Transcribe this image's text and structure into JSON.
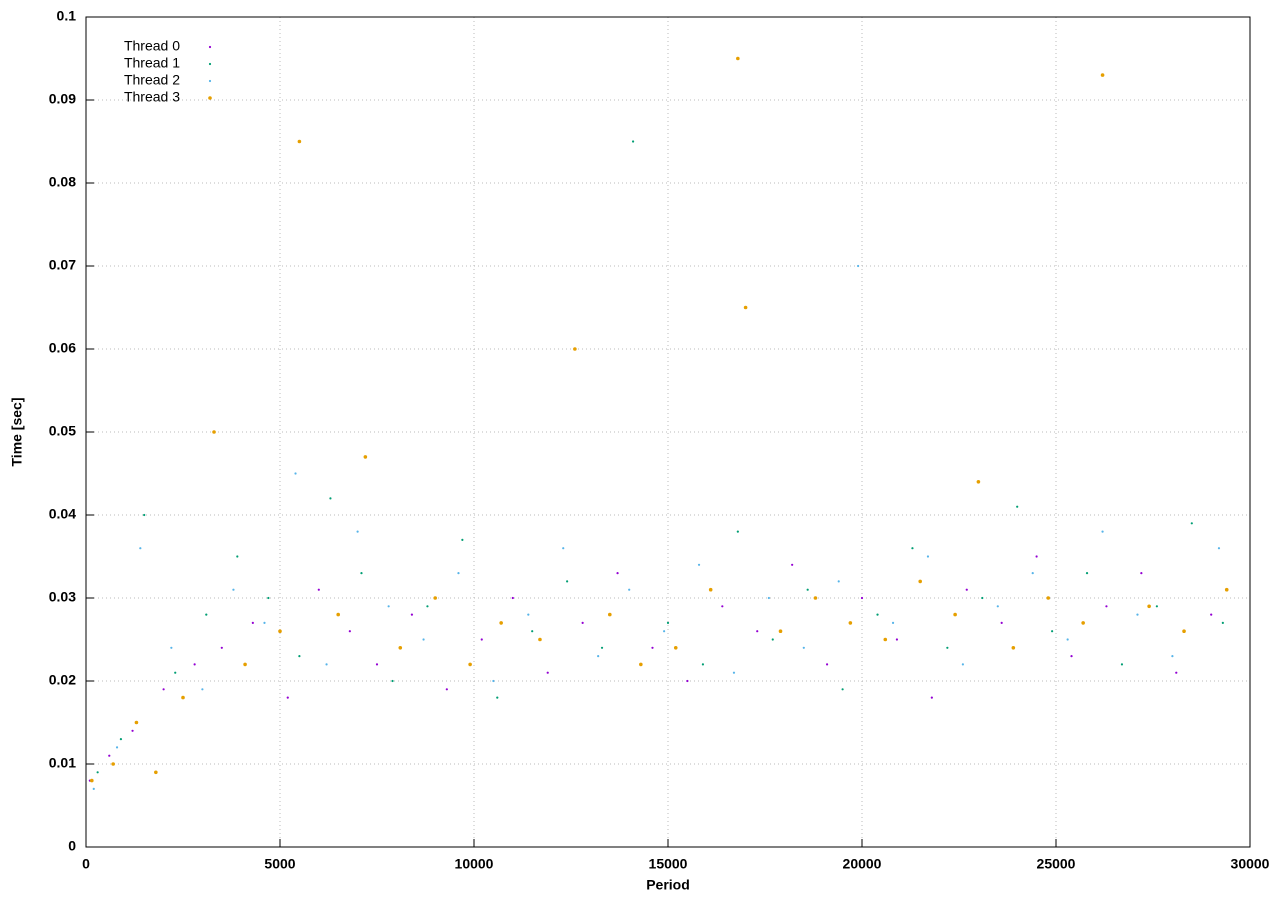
{
  "chart_data": {
    "type": "scatter",
    "x_label": "Period",
    "y_label": "Time [sec]",
    "xlim": [
      0,
      30000
    ],
    "ylim": [
      0,
      0.1
    ],
    "xticks": [
      0,
      5000,
      10000,
      15000,
      20000,
      25000,
      30000
    ],
    "yticks": [
      0,
      0.01,
      0.02,
      0.03,
      0.04,
      0.05,
      0.06,
      0.07,
      0.08,
      0.09,
      0.1
    ],
    "grid": true,
    "legend": "top-left",
    "series": [
      {
        "name": "Thread 0",
        "color": "#9400d3",
        "x": [
          100,
          600,
          1200,
          2000,
          2800,
          3500,
          4300,
          5200,
          6000,
          6800,
          7500,
          8400,
          9300,
          10200,
          11000,
          11900,
          12800,
          13700,
          14600,
          15500,
          16400,
          17300,
          18200,
          19100,
          20000,
          20900,
          21800,
          22700,
          23600,
          24500,
          25400,
          26300,
          27200,
          28100,
          29000
        ],
        "values": [
          0.008,
          0.011,
          0.014,
          0.019,
          0.022,
          0.024,
          0.027,
          0.018,
          0.031,
          0.026,
          0.022,
          0.028,
          0.019,
          0.025,
          0.03,
          0.021,
          0.027,
          0.033,
          0.024,
          0.02,
          0.029,
          0.026,
          0.034,
          0.022,
          0.03,
          0.025,
          0.018,
          0.031,
          0.027,
          0.035,
          0.023,
          0.029,
          0.033,
          0.021,
          0.028
        ]
      },
      {
        "name": "Thread 1",
        "color": "#009e73",
        "x": [
          300,
          900,
          1500,
          2300,
          3100,
          3900,
          4700,
          5500,
          6300,
          7100,
          7900,
          8800,
          9700,
          10600,
          11500,
          12400,
          13300,
          14100,
          15000,
          15900,
          16800,
          17700,
          18600,
          19500,
          20400,
          21300,
          22200,
          23100,
          24000,
          24900,
          25800,
          26700,
          27600,
          28500,
          29300
        ],
        "values": [
          0.009,
          0.013,
          0.04,
          0.021,
          0.028,
          0.035,
          0.03,
          0.023,
          0.042,
          0.033,
          0.02,
          0.029,
          0.037,
          0.018,
          0.026,
          0.032,
          0.024,
          0.085,
          0.027,
          0.022,
          0.038,
          0.025,
          0.031,
          0.019,
          0.028,
          0.036,
          0.024,
          0.03,
          0.041,
          0.026,
          0.033,
          0.022,
          0.029,
          0.039,
          0.027
        ]
      },
      {
        "name": "Thread 2",
        "color": "#56b4e9",
        "x": [
          200,
          800,
          1400,
          2200,
          3000,
          3800,
          4600,
          5400,
          6200,
          7000,
          7800,
          8700,
          9600,
          10500,
          11400,
          12300,
          13200,
          14000,
          14900,
          15800,
          16700,
          17600,
          18500,
          19400,
          19900,
          20800,
          21700,
          22600,
          23500,
          24400,
          25300,
          26200,
          27100,
          28000,
          29200
        ],
        "values": [
          0.007,
          0.012,
          0.036,
          0.024,
          0.019,
          0.031,
          0.027,
          0.045,
          0.022,
          0.038,
          0.029,
          0.025,
          0.033,
          0.02,
          0.028,
          0.036,
          0.023,
          0.031,
          0.026,
          0.034,
          0.021,
          0.03,
          0.024,
          0.032,
          0.07,
          0.027,
          0.035,
          0.022,
          0.029,
          0.033,
          0.025,
          0.038,
          0.028,
          0.023,
          0.036
        ]
      },
      {
        "name": "Thread 3",
        "color": "#e69f00",
        "x": [
          150,
          700,
          1300,
          1800,
          2500,
          3300,
          4100,
          5000,
          5500,
          6500,
          7200,
          8100,
          9000,
          9900,
          10700,
          11700,
          12600,
          13500,
          14300,
          15200,
          16100,
          16800,
          17000,
          17900,
          18800,
          19700,
          20600,
          21500,
          22400,
          23000,
          23900,
          24800,
          25700,
          26200,
          27400,
          28300,
          29400
        ],
        "values": [
          0.008,
          0.01,
          0.015,
          0.009,
          0.018,
          0.05,
          0.022,
          0.026,
          0.085,
          0.028,
          0.047,
          0.024,
          0.03,
          0.022,
          0.027,
          0.025,
          0.06,
          0.028,
          0.022,
          0.024,
          0.031,
          0.095,
          0.065,
          0.026,
          0.03,
          0.027,
          0.025,
          0.032,
          0.028,
          0.044,
          0.024,
          0.03,
          0.027,
          0.093,
          0.029,
          0.026,
          0.031
        ]
      }
    ]
  }
}
